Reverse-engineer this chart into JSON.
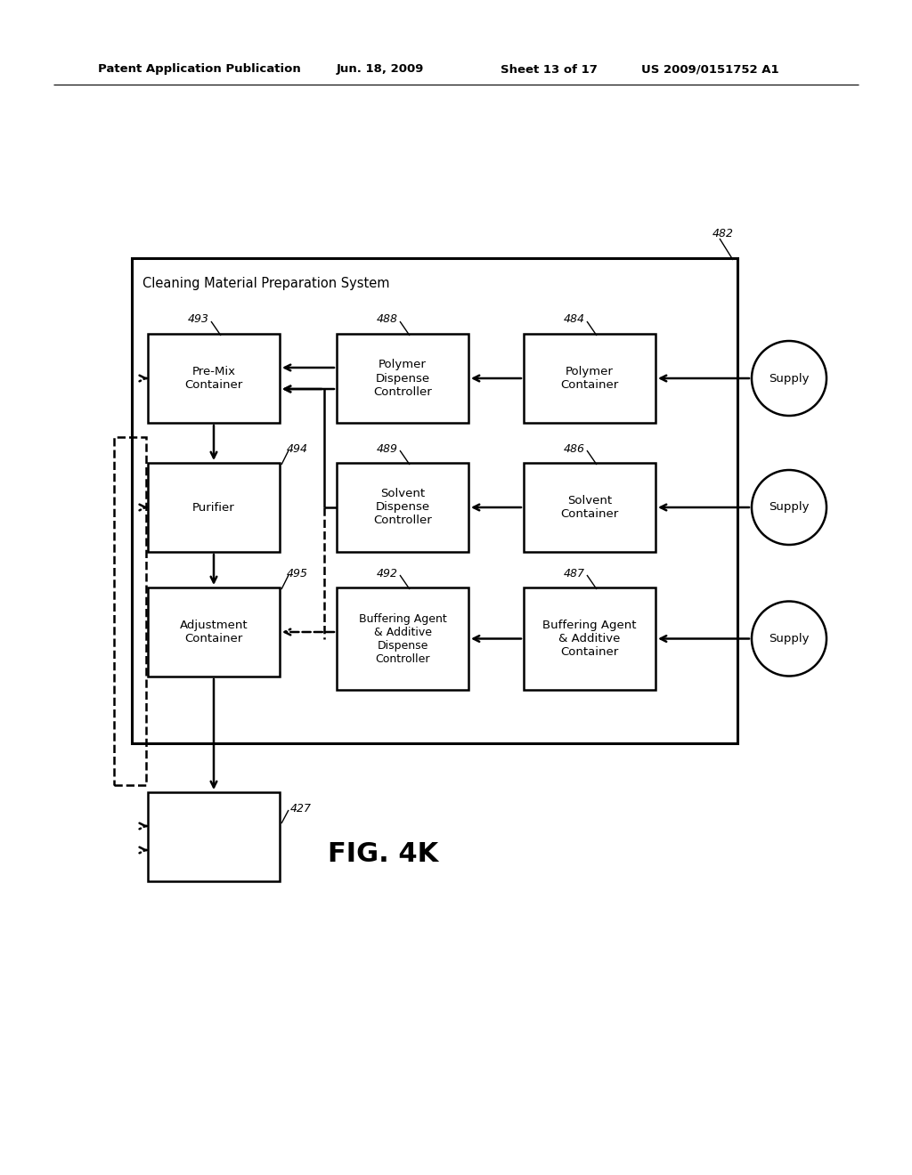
{
  "title_header": "Patent Application Publication",
  "date_header": "Jun. 18, 2009",
  "sheet_header": "Sheet 13 of 17",
  "patent_header": "US 2009/0151752 A1",
  "fig_label": "FIG. 4K",
  "system_label": "Cleaning Material Preparation System",
  "system_num": "482",
  "bg_color": "#ffffff"
}
